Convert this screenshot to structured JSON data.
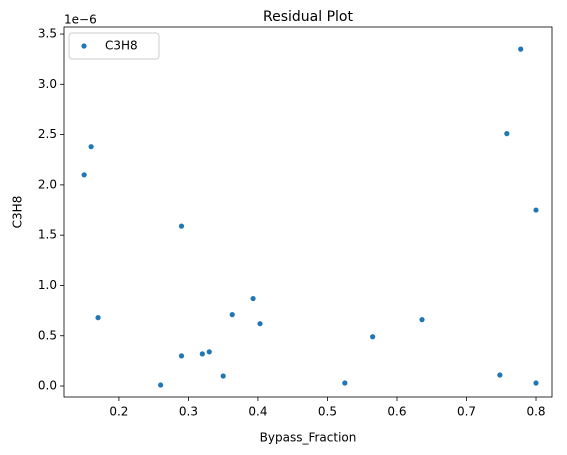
{
  "chart_data": {
    "type": "scatter",
    "title": "Residual Plot",
    "x_label": "Bypass_Fraction",
    "y_label": "C3H8",
    "y_offset_label": "1e−6",
    "series": [
      {
        "name": "C3H8",
        "color": "#1f77b4",
        "x": [
          0.15,
          0.16,
          0.17,
          0.26,
          0.29,
          0.29,
          0.32,
          0.33,
          0.35,
          0.363,
          0.393,
          0.403,
          0.525,
          0.565,
          0.636,
          0.748,
          0.758,
          0.778,
          0.8,
          0.8
        ],
        "values": [
          2.1e-06,
          2.38e-06,
          6.8e-07,
          1e-08,
          1.59e-06,
          3e-07,
          3.2e-07,
          3.4e-07,
          1e-07,
          7.1e-07,
          8.7e-07,
          6.2e-07,
          3e-08,
          4.9e-07,
          6.6e-07,
          1.1e-07,
          2.51e-06,
          3.35e-06,
          1.75e-06,
          3e-08
        ]
      }
    ],
    "xlim": [
      0.121,
      0.823
    ],
    "ylim": [
      -1.09e-07,
      3.57e-06
    ],
    "xticks": [
      0.2,
      0.3,
      0.4,
      0.5,
      0.6,
      0.7,
      0.8
    ],
    "yticks": [
      {
        "value": 0,
        "label": "0.0"
      },
      {
        "value": 5e-07,
        "label": "0.5"
      },
      {
        "value": 1e-06,
        "label": "1.0"
      },
      {
        "value": 1.5e-06,
        "label": "1.5"
      },
      {
        "value": 2e-06,
        "label": "2.0"
      },
      {
        "value": 2.5e-06,
        "label": "2.5"
      },
      {
        "value": 3e-06,
        "label": "3.0"
      },
      {
        "value": 3.5e-06,
        "label": "3.5"
      }
    ],
    "legend": "upper left"
  }
}
